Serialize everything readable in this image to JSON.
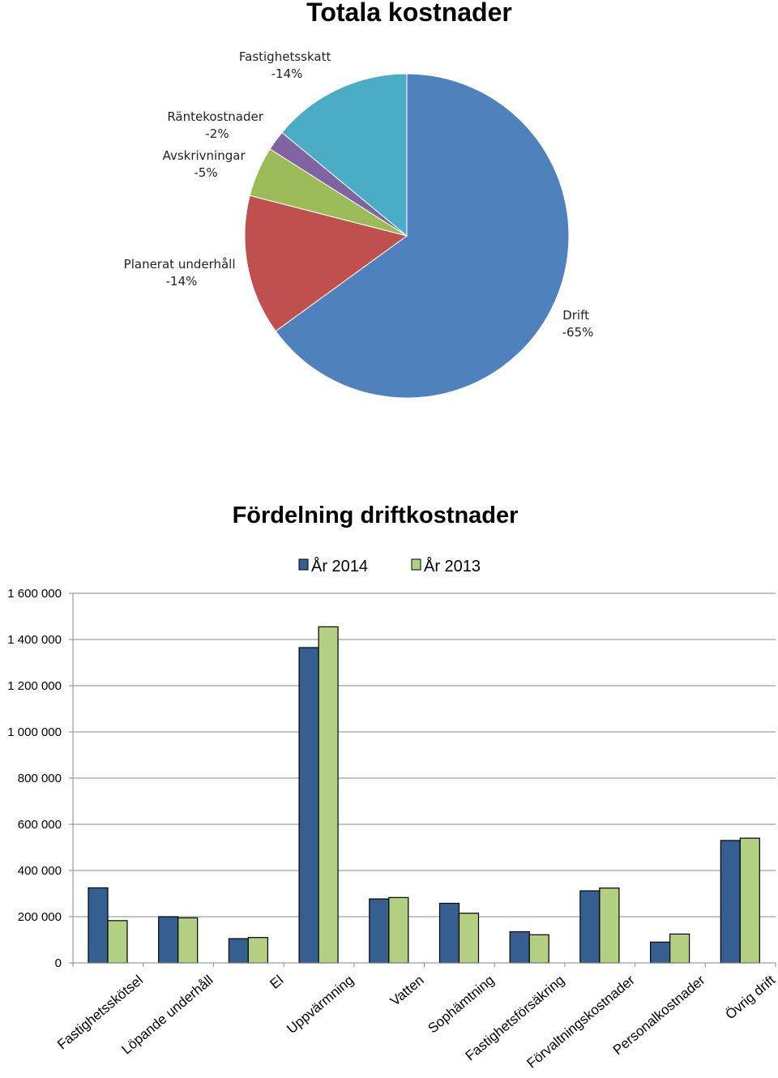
{
  "chart_data": [
    {
      "type": "pie",
      "title": "Totala kostnader",
      "slices": [
        {
          "label": "Drift",
          "value_label": "-65%",
          "value": 65,
          "color": "#4F81BD"
        },
        {
          "label": "Planerat underhåll",
          "value_label": "-14%",
          "value": 14,
          "color": "#C0504D"
        },
        {
          "label": "Avskrivningar",
          "value_label": "-5%",
          "value": 5,
          "color": "#9BBB59"
        },
        {
          "label": "Räntekostnader",
          "value_label": "-2%",
          "value": 2,
          "color": "#8064A2"
        },
        {
          "label": "Fastighetsskatt",
          "value_label": "-14%",
          "value": 14,
          "color": "#4BACC6"
        }
      ]
    },
    {
      "type": "bar",
      "title": "Fördelning driftkostnader",
      "categories": [
        "Fastighetsskötsel",
        "Löpande underhåll",
        "El",
        "Uppvärmning",
        "Vatten",
        "Sophämtning",
        "Fastighetsförsäkring",
        "Förvaltningskostnader",
        "Personalkostnader",
        "Övrig drift"
      ],
      "series": [
        {
          "name": "År 2014",
          "color": "#365F91",
          "values": [
            325000,
            200000,
            105000,
            1365000,
            277000,
            258000,
            135000,
            312000,
            90000,
            530000
          ]
        },
        {
          "name": "År 2013",
          "color": "#B2CF82",
          "values": [
            183000,
            195000,
            110000,
            1455000,
            283000,
            215000,
            122000,
            324000,
            125000,
            540000
          ]
        }
      ],
      "ylim": [
        0,
        1600000
      ],
      "yticks": [
        0,
        200000,
        400000,
        600000,
        800000,
        1000000,
        1200000,
        1400000,
        1600000
      ],
      "ytick_labels": [
        "0",
        "200 000",
        "400 000",
        "600 000",
        "800 000",
        "1 000 000",
        "1 200 000",
        "1 400 000",
        "1 600 000"
      ],
      "grid": true,
      "legend": "top"
    }
  ]
}
